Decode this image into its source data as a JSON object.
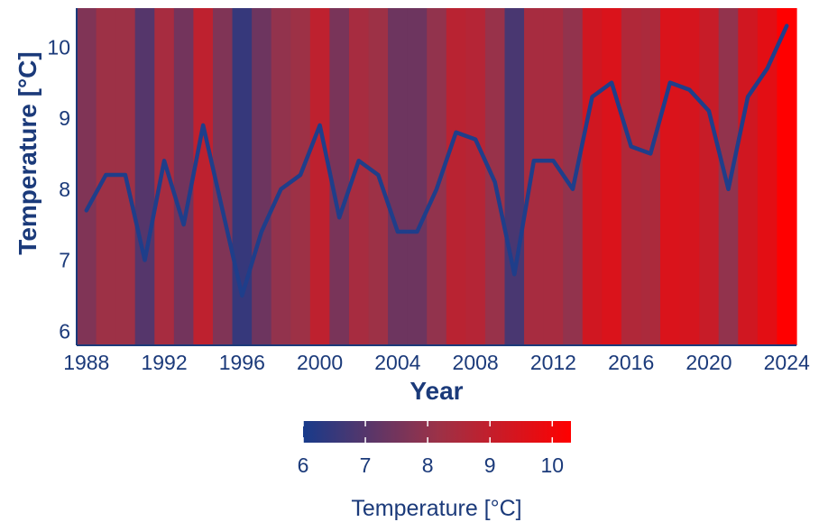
{
  "chart_data": {
    "type": "line",
    "title": "",
    "xlabel": "Year",
    "ylabel": "Temperature [°C]",
    "xlim": [
      1987.5,
      2024.5
    ],
    "ylim": [
      5.8,
      10.55
    ],
    "x_ticks": [
      "1988",
      "1992",
      "1996",
      "2000",
      "2004",
      "2008",
      "2012",
      "2016",
      "2020",
      "2024"
    ],
    "y_ticks": [
      "6",
      "7",
      "8",
      "9",
      "10"
    ],
    "background": "warming stripes colored by yearly temperature",
    "grid": false,
    "legend": "colorbar bottom-center",
    "series": [
      {
        "x": [
          1988,
          1989,
          1990,
          1991,
          1992,
          1993,
          1994,
          1995,
          1996,
          1997,
          1998,
          1999,
          2000,
          2001,
          2002,
          2003,
          2004,
          2005,
          2006,
          2007,
          2008,
          2009,
          2010,
          2011,
          2012,
          2013,
          2014,
          2015,
          2016,
          2017,
          2018,
          2019,
          2020,
          2021,
          2022,
          2023,
          2024
        ],
        "values": [
          7.7,
          8.2,
          8.2,
          7.0,
          8.4,
          7.5,
          8.9,
          7.7,
          6.5,
          7.4,
          8.0,
          8.2,
          8.9,
          7.6,
          8.4,
          8.2,
          7.4,
          7.4,
          8.0,
          8.8,
          8.7,
          8.1,
          6.8,
          8.4,
          8.4,
          8.0,
          9.3,
          9.5,
          8.6,
          8.5,
          9.5,
          9.4,
          9.1,
          8.0,
          9.3,
          9.7,
          10.3
        ]
      }
    ],
    "colorbar": {
      "title": "Temperature [°C]",
      "min": 6.0,
      "max": 10.3,
      "ticks": [
        "6",
        "7",
        "8",
        "9",
        "10"
      ],
      "colors": [
        "#183a8a",
        "#9b3248",
        "#ff0000"
      ]
    },
    "colors": {
      "text": "#1b3a7a",
      "line": "#1f3e8a",
      "axis": "#1b3a7a"
    }
  }
}
